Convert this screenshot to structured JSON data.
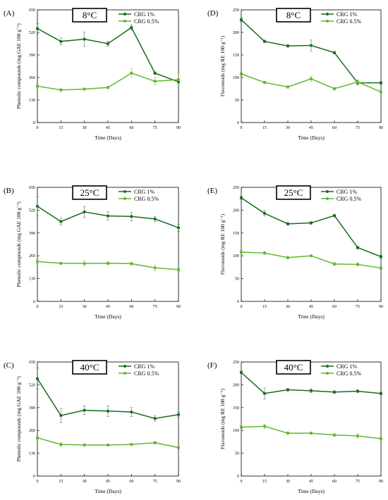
{
  "colors": {
    "dark": "#1a6b1e",
    "light": "#5db82e"
  },
  "chart_data": [
    {
      "id": "A",
      "panel_label": "(A)",
      "temp": "8°C",
      "type": "line",
      "x": [
        0,
        15,
        30,
        45,
        60,
        75,
        90
      ],
      "xticks": [
        "0",
        "15",
        "30",
        "45",
        "60",
        "75",
        "90"
      ],
      "xlim": [
        0,
        90
      ],
      "ylim": [
        0,
        650
      ],
      "yticks": [
        "0",
        "130",
        "260",
        "390",
        "520",
        "650"
      ],
      "ytick_values": [
        0,
        130,
        260,
        390,
        520,
        650
      ],
      "xlabel": "Time (Days)",
      "ylabel": "Phenolic compounds (mg  GAE 100 g⁻¹)",
      "legend_position": "top-right",
      "series": [
        {
          "name": "CRG 1%",
          "values": [
            542,
            468,
            481,
            455,
            548,
            285,
            235
          ],
          "errors": [
            30,
            20,
            40,
            15,
            15,
            8,
            12
          ]
        },
        {
          "name": "CRG 0.5%",
          "values": [
            210,
            188,
            193,
            202,
            285,
            238,
            248
          ],
          "errors": [
            10,
            8,
            6,
            6,
            25,
            20,
            40
          ]
        }
      ]
    },
    {
      "id": "D",
      "panel_label": "(D)",
      "temp": "8°C",
      "type": "line",
      "x": [
        0,
        15,
        30,
        45,
        60,
        75,
        90
      ],
      "xticks": [
        "0",
        "15",
        "30",
        "45",
        "60",
        "75",
        "90"
      ],
      "xlim": [
        0,
        90
      ],
      "ylim": [
        0,
        250
      ],
      "yticks": [
        "0",
        "50",
        "100",
        "150",
        "200",
        "250"
      ],
      "ytick_values": [
        0,
        50,
        100,
        150,
        200,
        250
      ],
      "xlabel": "Time (Days)",
      "ylabel": "Flavonoids (mg RE 100 g⁻¹)",
      "legend_position": "top-right",
      "series": [
        {
          "name": "CRG 1%",
          "values": [
            228,
            180,
            170,
            171,
            155,
            88,
            88
          ],
          "errors": [
            4,
            3,
            3,
            12,
            3,
            5,
            3
          ]
        },
        {
          "name": "CRG 0.5%",
          "values": [
            108,
            89,
            79,
            97,
            75,
            90,
            68
          ],
          "errors": [
            3,
            3,
            3,
            6,
            3,
            5,
            4
          ]
        }
      ]
    },
    {
      "id": "B",
      "panel_label": "(B)",
      "temp": "25°C",
      "type": "line",
      "x": [
        0,
        15,
        30,
        45,
        60,
        75,
        90
      ],
      "xticks": [
        "0",
        "15",
        "30",
        "45",
        "60",
        "75",
        "90"
      ],
      "xlim": [
        0,
        90
      ],
      "ylim": [
        0,
        650
      ],
      "yticks": [
        "0",
        "130",
        "260",
        "390",
        "520",
        "650"
      ],
      "ytick_values": [
        0,
        130,
        260,
        390,
        520,
        650
      ],
      "xlabel": "Time (Days)",
      "ylabel": "Phenolic compounds (mg  GAE 100 g⁻¹)",
      "legend_position": "top-right",
      "series": [
        {
          "name": "CRG 1%",
          "values": [
            542,
            455,
            510,
            487,
            484,
            470,
            420
          ],
          "errors": [
            55,
            20,
            30,
            25,
            25,
            15,
            20
          ]
        },
        {
          "name": "CRG 0.5%",
          "values": [
            227,
            217,
            216,
            217,
            215,
            191,
            181
          ],
          "errors": [
            12,
            6,
            15,
            8,
            8,
            15,
            10
          ]
        }
      ]
    },
    {
      "id": "E",
      "panel_label": "(E)",
      "temp": "25°C",
      "type": "line",
      "x": [
        0,
        15,
        30,
        45,
        60,
        75,
        90
      ],
      "xticks": [
        "0",
        "15",
        "30",
        "45",
        "60",
        "75",
        "90"
      ],
      "xlim": [
        0,
        90
      ],
      "ylim": [
        0,
        250
      ],
      "yticks": [
        "0",
        "50",
        "100",
        "150",
        "200",
        "250"
      ],
      "ytick_values": [
        0,
        50,
        100,
        150,
        200,
        250
      ],
      "xlabel": "Time (Days)",
      "ylabel": "Flavonoids (mg RE 100 g⁻¹)",
      "legend_position": "top-right",
      "series": [
        {
          "name": "CRG 1%",
          "values": [
            227,
            193,
            170,
            172,
            188,
            118,
            98
          ],
          "errors": [
            4,
            6,
            3,
            3,
            3,
            3,
            4
          ]
        },
        {
          "name": "CRG 0.5%",
          "values": [
            108,
            106,
            96,
            100,
            82,
            81,
            73
          ],
          "errors": [
            4,
            3,
            3,
            2,
            3,
            3,
            3
          ]
        }
      ]
    },
    {
      "id": "C",
      "panel_label": "(C)",
      "temp": "40°C",
      "type": "line",
      "x": [
        0,
        15,
        30,
        45,
        60,
        75,
        90
      ],
      "xticks": [
        "0",
        "15",
        "30",
        "45",
        "60",
        "75",
        "90"
      ],
      "xlim": [
        0,
        90
      ],
      "ylim": [
        0,
        650
      ],
      "yticks": [
        "0",
        "130",
        "260",
        "390",
        "520",
        "650"
      ],
      "ytick_values": [
        0,
        130,
        260,
        390,
        520,
        650
      ],
      "xlabel": "Time (Days)",
      "ylabel": "Phenolic compounds (mg  GAE 100 g⁻¹)",
      "legend_position": "top-right",
      "series": [
        {
          "name": "CRG 1%",
          "values": [
            555,
            345,
            375,
            370,
            365,
            328,
            350
          ],
          "errors": [
            60,
            40,
            25,
            30,
            25,
            15,
            15
          ]
        },
        {
          "name": "CRG 0.5%",
          "values": [
            218,
            180,
            177,
            177,
            180,
            190,
            162
          ],
          "errors": [
            8,
            10,
            8,
            6,
            6,
            8,
            8
          ]
        }
      ]
    },
    {
      "id": "F",
      "panel_label": "(F)",
      "temp": "40°C",
      "type": "line",
      "x": [
        0,
        15,
        30,
        45,
        60,
        75,
        90
      ],
      "xticks": [
        "0",
        "15",
        "30",
        "45",
        "60",
        "75",
        "90"
      ],
      "xlim": [
        0,
        90
      ],
      "ylim": [
        0,
        250
      ],
      "yticks": [
        "0",
        "50",
        "100",
        "150",
        "200",
        "250"
      ],
      "ytick_values": [
        0,
        50,
        100,
        150,
        200,
        250
      ],
      "xlabel": "Time (Days)",
      "ylabel": "Flavonoids (mg RE 100 g⁻¹)",
      "legend_position": "top-right",
      "series": [
        {
          "name": "CRG 1%",
          "values": [
            227,
            181,
            189,
            187,
            184,
            186,
            181
          ],
          "errors": [
            3,
            12,
            3,
            4,
            3,
            3,
            3
          ]
        },
        {
          "name": "CRG 0.5%",
          "values": [
            107,
            109,
            94,
            94,
            90,
            88,
            82
          ],
          "errors": [
            3,
            5,
            3,
            2,
            3,
            5,
            3
          ]
        }
      ]
    }
  ]
}
